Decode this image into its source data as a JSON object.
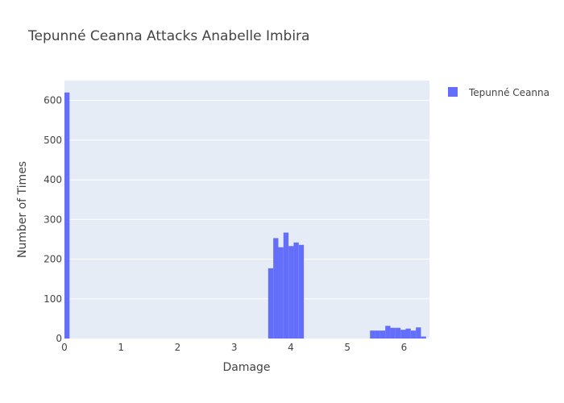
{
  "chart_data": {
    "type": "bar",
    "title": "Tepunné Ceanna Attacks Anabelle Imbira",
    "xlabel": "Damage",
    "ylabel": "Number of Times",
    "xlim": [
      0,
      6.45
    ],
    "ylim": [
      0,
      650
    ],
    "x_ticks": [
      0,
      1,
      2,
      3,
      4,
      5,
      6
    ],
    "y_ticks": [
      0,
      100,
      200,
      300,
      400,
      500,
      600
    ],
    "bin_width": 0.09,
    "grid": true,
    "legend_position": "top-right",
    "series": [
      {
        "name": "Tepunné Ceanna",
        "color": "#636efa",
        "bins": [
          {
            "x0": 0.0,
            "value": 620
          },
          {
            "x0": 3.6,
            "value": 177
          },
          {
            "x0": 3.69,
            "value": 253
          },
          {
            "x0": 3.78,
            "value": 230
          },
          {
            "x0": 3.87,
            "value": 267
          },
          {
            "x0": 3.96,
            "value": 233
          },
          {
            "x0": 4.05,
            "value": 242
          },
          {
            "x0": 4.14,
            "value": 236
          },
          {
            "x0": 5.4,
            "value": 20
          },
          {
            "x0": 5.49,
            "value": 20
          },
          {
            "x0": 5.58,
            "value": 20
          },
          {
            "x0": 5.67,
            "value": 32
          },
          {
            "x0": 5.76,
            "value": 27
          },
          {
            "x0": 5.85,
            "value": 27
          },
          {
            "x0": 5.94,
            "value": 22
          },
          {
            "x0": 6.03,
            "value": 25
          },
          {
            "x0": 6.12,
            "value": 20
          },
          {
            "x0": 6.21,
            "value": 28
          },
          {
            "x0": 6.3,
            "value": 5
          }
        ]
      }
    ]
  },
  "colors": {
    "plot_background": "#e5ecf6",
    "gridline": "#ffffff",
    "text": "#444444"
  }
}
